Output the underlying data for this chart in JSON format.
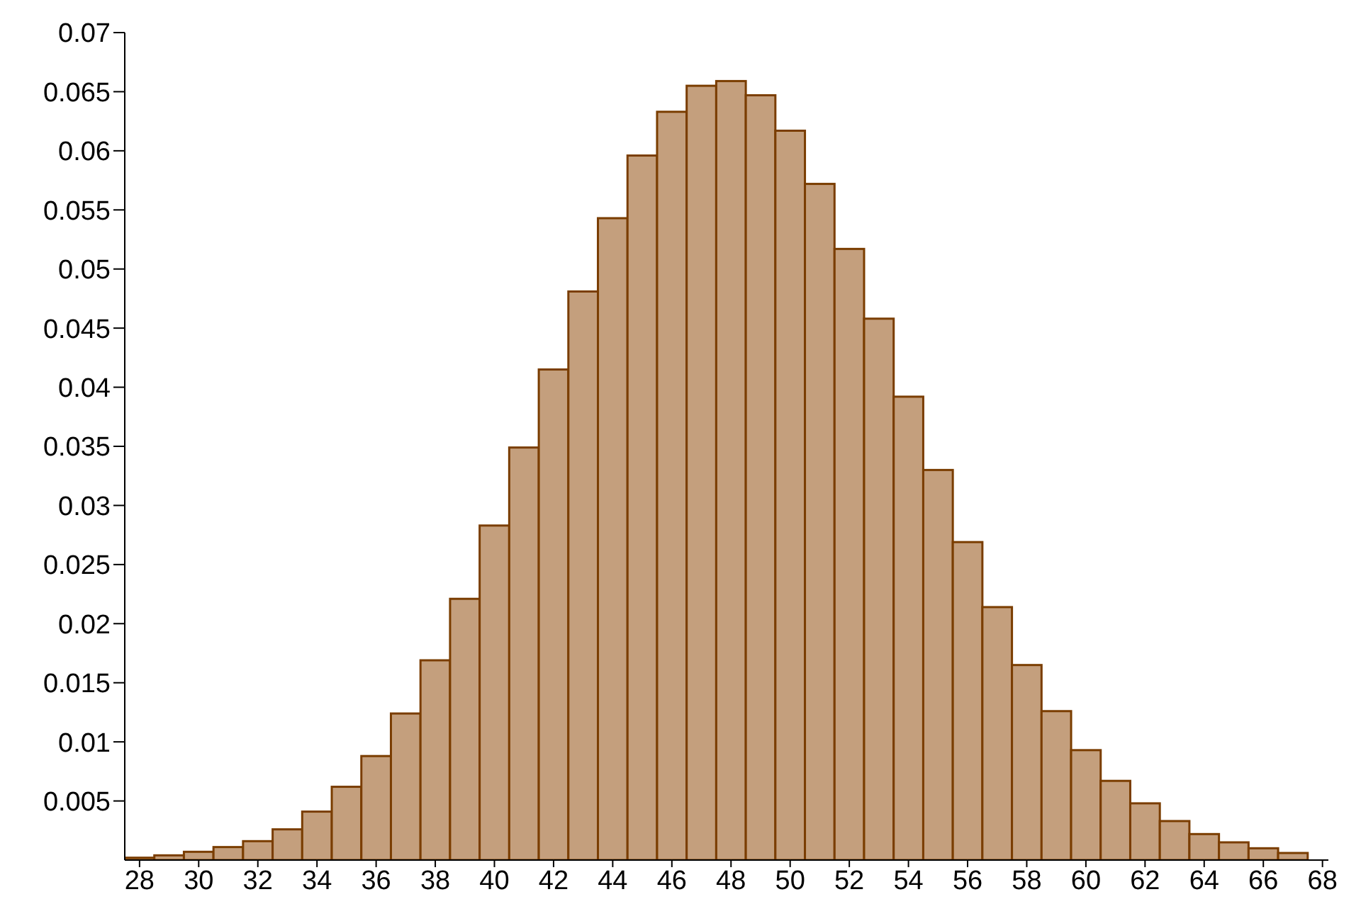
{
  "chart_data": {
    "type": "histogram",
    "color": "#c49f7d",
    "bins": [
      27.5,
      28.5,
      29.5,
      30.5,
      31.5,
      32.5,
      33.5,
      34.5,
      35.5,
      36.5,
      37.5,
      38.5,
      39.5,
      40.5,
      41.5,
      42.5,
      43.5,
      44.5,
      45.5,
      46.5,
      47.5,
      48.5,
      49.5,
      50.5,
      51.5,
      52.5,
      53.5,
      54.5,
      55.5,
      56.5,
      57.5,
      58.5,
      59.5,
      60.5,
      61.5,
      62.5,
      63.5,
      64.5,
      65.5,
      66.5,
      67.5
    ],
    "values": [
      0.0002,
      0.0004,
      0.0007,
      0.0011,
      0.0016,
      0.0026,
      0.0041,
      0.0062,
      0.0088,
      0.0124,
      0.0169,
      0.0221,
      0.0283,
      0.0349,
      0.0415,
      0.0481,
      0.0543,
      0.0596,
      0.0633,
      0.0655,
      0.0659,
      0.0647,
      0.0617,
      0.0572,
      0.0517,
      0.0458,
      0.0392,
      0.033,
      0.0269,
      0.0214,
      0.0165,
      0.0126,
      0.0093,
      0.0067,
      0.0048,
      0.0033,
      0.0022,
      0.0015,
      0.001,
      0.0006
    ],
    "xlim": [
      27.5,
      68.2
    ],
    "xticks": [
      28,
      30,
      32,
      34,
      36,
      38,
      40,
      42,
      44,
      46,
      48,
      50,
      52,
      54,
      56,
      58,
      60,
      62,
      64,
      66,
      68
    ],
    "ylim": [
      0,
      0.07
    ],
    "yticks": [
      0.005,
      0.01,
      0.015,
      0.02,
      0.025,
      0.03,
      0.035,
      0.04,
      0.045,
      0.05,
      0.055,
      0.06,
      0.065,
      0.07
    ],
    "grid": false,
    "legend": false
  }
}
